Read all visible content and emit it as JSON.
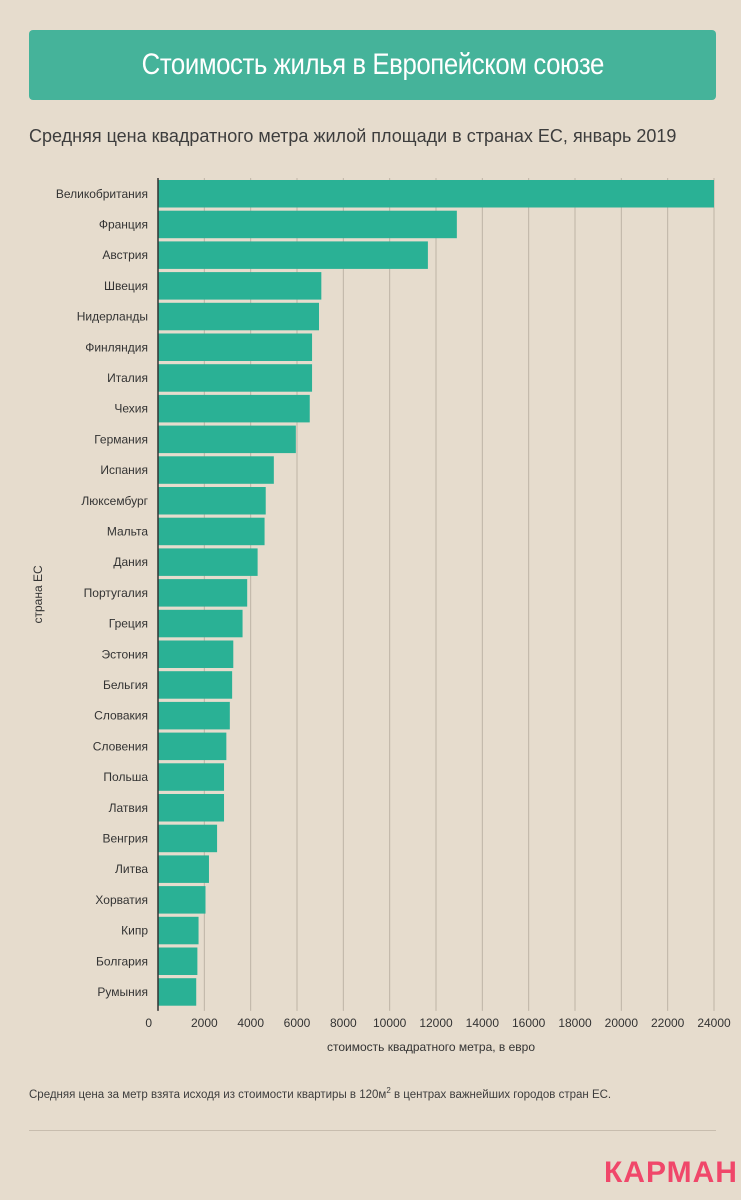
{
  "title": "Стоимость жилья в Европейском союзе",
  "subtitle": "Средняя цена квадратного метра жилой площади в странах ЕС, январь 2019",
  "footnote": {
    "text_before": "Средняя цена за метр взята исходя из стоимости квартиры в 120м",
    "superscript": "2",
    "text_after": " в центрах важнейших городов стран ЕС."
  },
  "logo": "КАРМАН",
  "colors": {
    "bar": "#2ab195",
    "background": "#e6dccd",
    "title_bg": "#45b39a",
    "logo": "#f0476a"
  },
  "chart_data": {
    "type": "bar",
    "orientation": "horizontal",
    "xlabel": "стоимость квадратного метра, в евро",
    "ylabel": "страна ЕС",
    "xlim": [
      0,
      24000
    ],
    "xticks": [
      0,
      2000,
      4000,
      6000,
      8000,
      10000,
      12000,
      14000,
      16000,
      18000,
      20000,
      22000,
      24000
    ],
    "grid": true,
    "categories": [
      "Великобритания",
      "Франция",
      "Австрия",
      "Швеция",
      "Нидерланды",
      "Финляндия",
      "Италия",
      "Чехия",
      "Германия",
      "Испания",
      "Люксембург",
      "Мальта",
      "Дания",
      "Португалия",
      "Греция",
      "Эстония",
      "Бельгия",
      "Словакия",
      "Словения",
      "Польша",
      "Латвия",
      "Венгрия",
      "Литва",
      "Хорватия",
      "Кипр",
      "Болгария",
      "Румыния"
    ],
    "values": [
      24000,
      12900,
      11650,
      7050,
      6950,
      6650,
      6650,
      6550,
      5950,
      5000,
      4650,
      4600,
      4300,
      3850,
      3650,
      3250,
      3200,
      3100,
      2950,
      2850,
      2850,
      2550,
      2200,
      2050,
      1750,
      1700,
      1650
    ]
  }
}
